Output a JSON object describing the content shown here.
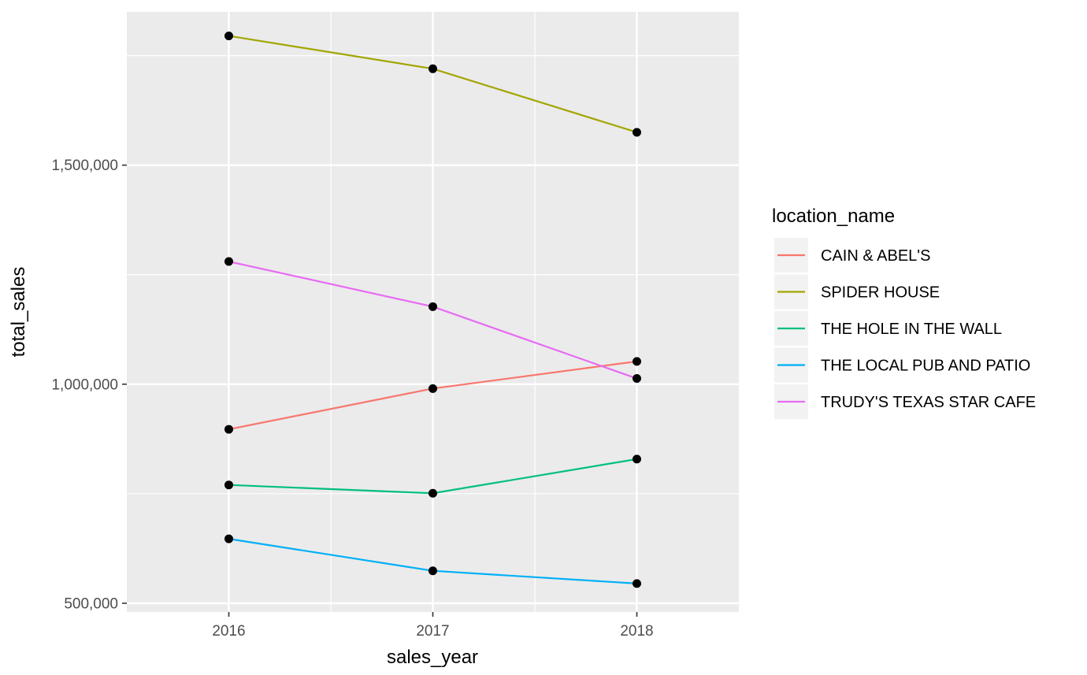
{
  "chart_data": {
    "type": "line",
    "title": "",
    "xlabel": "sales_year",
    "ylabel": "total_sales",
    "x": [
      2016,
      2017,
      2018
    ],
    "x_tick_labels": [
      "2016",
      "2017",
      "2018"
    ],
    "xlim": [
      2015.5,
      2018.5
    ],
    "ylim": [
      480000,
      1850000
    ],
    "y_ticks": [
      500000,
      1000000,
      1500000
    ],
    "y_tick_labels": [
      "500,000",
      "1,000,000",
      "1,500,000"
    ],
    "grid": true,
    "legend": {
      "title": "location_name",
      "position": "right"
    },
    "series": [
      {
        "name": "CAIN & ABEL'S",
        "color": "#F8766D",
        "values": [
          897000,
          990000,
          1052000
        ]
      },
      {
        "name": "SPIDER HOUSE",
        "color": "#A3A500",
        "values": [
          1795000,
          1720000,
          1575000
        ]
      },
      {
        "name": "THE HOLE IN THE WALL",
        "color": "#00BF7D",
        "values": [
          770000,
          751000,
          829000
        ]
      },
      {
        "name": "THE LOCAL PUB AND PATIO",
        "color": "#00B0F6",
        "values": [
          647000,
          574000,
          545000
        ]
      },
      {
        "name": "TRUDY'S TEXAS STAR CAFE",
        "color": "#E76BF3",
        "values": [
          1280000,
          1177000,
          1013000
        ]
      }
    ],
    "point_color": "#000000",
    "panel_background": "#EBEBEB",
    "grid_color": "#FFFFFF"
  }
}
